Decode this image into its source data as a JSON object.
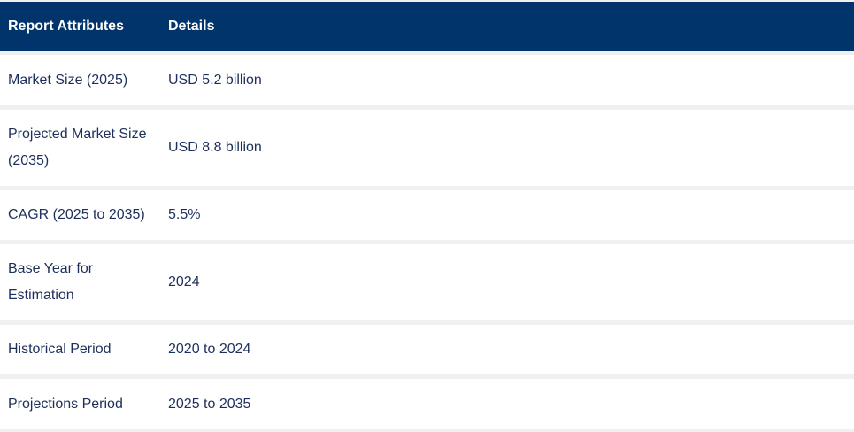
{
  "table": {
    "header": {
      "attribute": "Report Attributes",
      "details": "Details"
    },
    "rows": [
      {
        "attribute": "Market Size (2025)",
        "details": "USD 5.2 billion"
      },
      {
        "attribute": "Projected Market Size (2035)",
        "details": "USD 8.8 billion"
      },
      {
        "attribute": "CAGR (2025 to 2035)",
        "details": "5.5%"
      },
      {
        "attribute": "Base Year for Estimation",
        "details": "2024"
      },
      {
        "attribute": "Historical Period",
        "details": "2020 to 2024"
      },
      {
        "attribute": "Projections Period",
        "details": "2025 to 2035"
      }
    ]
  },
  "colors": {
    "header_background": "#00346b",
    "header_text": "#ffffff",
    "body_text": "#1d2f5c",
    "row_separator": "#f0f0f0"
  }
}
